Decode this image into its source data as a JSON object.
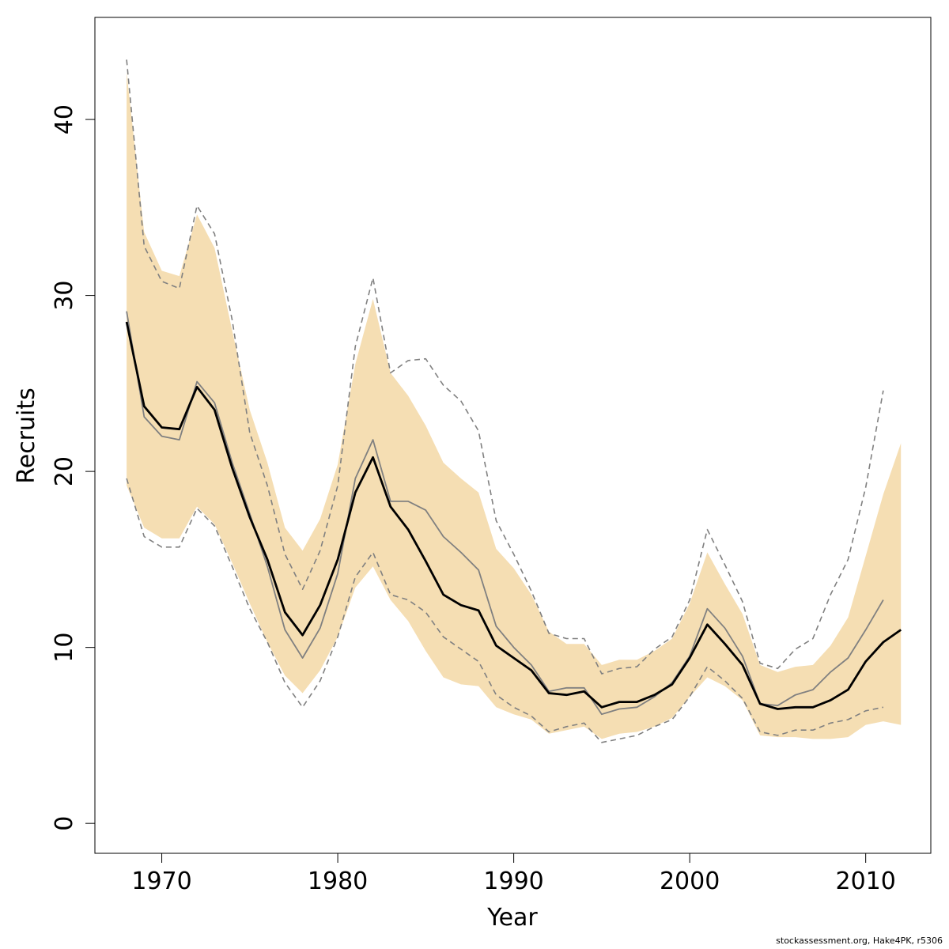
{
  "chart_data": {
    "type": "line",
    "xlabel": "Year",
    "ylabel": "Recruits",
    "xlim": [
      1966.2,
      2013.7
    ],
    "ylim": [
      -1.7,
      45.8
    ],
    "xticks": [
      1970,
      1980,
      1990,
      2000,
      2010
    ],
    "yticks": [
      0,
      10,
      20,
      30,
      40
    ],
    "grid": false,
    "legend": "none",
    "colors": {
      "band": "#f5deb3",
      "median": "#000000",
      "median_prev": "#808080",
      "interval_prev": "#808080",
      "frame": "#000000"
    },
    "series": [
      {
        "role": "band",
        "x": [
          1968,
          1969,
          1970,
          1971,
          1972,
          1973,
          1974,
          1975,
          1976,
          1977,
          1978,
          1979,
          1980,
          1981,
          1982,
          1983,
          1984,
          1985,
          1986,
          1987,
          1988,
          1989,
          1990,
          1991,
          1992,
          1993,
          1994,
          1995,
          1996,
          1997,
          1998,
          1999,
          2000,
          2001,
          2002,
          2003,
          2004,
          2005,
          2006,
          2007,
          2008,
          2009,
          2010,
          2011,
          2012
        ],
        "lower": [
          19.2,
          16.8,
          16.2,
          16.2,
          18.0,
          17.0,
          14.8,
          12.5,
          10.3,
          8.4,
          7.4,
          8.7,
          10.6,
          13.4,
          14.6,
          12.7,
          11.5,
          9.8,
          8.3,
          7.9,
          7.8,
          6.6,
          6.2,
          5.9,
          5.1,
          5.3,
          5.5,
          4.8,
          5.1,
          5.2,
          5.5,
          6.0,
          7.2,
          8.3,
          7.8,
          7.0,
          5.0,
          4.9,
          4.9,
          4.8,
          4.8,
          4.9,
          5.6,
          5.8,
          5.6
        ],
        "upper": [
          42.7,
          33.6,
          31.4,
          31.1,
          34.6,
          32.7,
          28.0,
          23.5,
          20.5,
          16.8,
          15.5,
          17.3,
          20.4,
          26.1,
          29.8,
          25.6,
          24.3,
          22.6,
          20.5,
          19.6,
          18.8,
          15.6,
          14.5,
          13.0,
          10.9,
          10.2,
          10.2,
          9.0,
          9.3,
          9.3,
          9.8,
          10.5,
          12.5,
          15.4,
          13.6,
          11.9,
          9.0,
          8.6,
          8.9,
          9.0,
          10.1,
          11.7,
          15.2,
          18.7,
          21.6
        ]
      },
      {
        "role": "median",
        "x": [
          1968,
          1969,
          1970,
          1971,
          1972,
          1973,
          1974,
          1975,
          1976,
          1977,
          1978,
          1979,
          1980,
          1981,
          1982,
          1983,
          1984,
          1985,
          1986,
          1987,
          1988,
          1989,
          1990,
          1991,
          1992,
          1993,
          1994,
          1995,
          1996,
          1997,
          1998,
          1999,
          2000,
          2001,
          2002,
          2003,
          2004,
          2005,
          2006,
          2007,
          2008,
          2009,
          2010,
          2011,
          2012
        ],
        "y": [
          28.5,
          23.7,
          22.5,
          22.4,
          24.8,
          23.5,
          20.2,
          17.4,
          15.0,
          12.0,
          10.7,
          12.4,
          15.0,
          18.8,
          20.8,
          18.0,
          16.7,
          14.9,
          13.0,
          12.4,
          12.1,
          10.1,
          9.4,
          8.7,
          7.4,
          7.3,
          7.5,
          6.6,
          6.9,
          6.9,
          7.3,
          7.9,
          9.4,
          11.3,
          10.2,
          9.0,
          6.8,
          6.5,
          6.6,
          6.6,
          7.0,
          7.6,
          9.2,
          10.3,
          11.0
        ]
      },
      {
        "role": "median_prev",
        "x": [
          1968,
          1969,
          1970,
          1971,
          1972,
          1973,
          1974,
          1975,
          1976,
          1977,
          1978,
          1979,
          1980,
          1981,
          1982,
          1983,
          1984,
          1985,
          1986,
          1987,
          1988,
          1989,
          1990,
          1991,
          1992,
          1993,
          1994,
          1995,
          1996,
          1997,
          1998,
          1999,
          2000,
          2001,
          2002,
          2003,
          2004,
          2005,
          2006,
          2007,
          2008,
          2009,
          2010,
          2011
        ],
        "y": [
          29.1,
          23.1,
          22.0,
          21.8,
          25.1,
          23.9,
          20.5,
          17.6,
          14.6,
          11.0,
          9.4,
          11.1,
          14.2,
          19.6,
          21.8,
          18.3,
          18.3,
          17.8,
          16.3,
          15.4,
          14.4,
          11.2,
          10.0,
          9.0,
          7.5,
          7.7,
          7.7,
          6.2,
          6.5,
          6.6,
          7.2,
          8.0,
          9.5,
          12.2,
          11.1,
          9.5,
          6.8,
          6.7,
          7.3,
          7.6,
          8.6,
          9.4,
          11.0,
          12.7
        ]
      },
      {
        "role": "upper_prev",
        "x": [
          1968,
          1969,
          1970,
          1971,
          1972,
          1973,
          1974,
          1975,
          1976,
          1977,
          1978,
          1979,
          1980,
          1981,
          1982,
          1983,
          1984,
          1985,
          1986,
          1987,
          1988,
          1989,
          1990,
          1991,
          1992,
          1993,
          1994,
          1995,
          1996,
          1997,
          1998,
          1999,
          2000,
          2001,
          2002,
          2003,
          2004,
          2005,
          2006,
          2007,
          2008,
          2009,
          2010,
          2011
        ],
        "y": [
          43.4,
          32.8,
          30.8,
          30.4,
          35.1,
          33.5,
          28.6,
          22.2,
          19.2,
          15.3,
          13.3,
          15.5,
          19.2,
          27.1,
          31.0,
          25.6,
          26.3,
          26.4,
          24.9,
          24.0,
          22.3,
          17.2,
          15.3,
          13.2,
          10.8,
          10.5,
          10.5,
          8.5,
          8.8,
          8.9,
          9.9,
          10.6,
          12.7,
          16.7,
          14.7,
          12.6,
          9.1,
          8.8,
          9.9,
          10.5,
          13.0,
          15.0,
          19.1,
          24.6
        ]
      },
      {
        "role": "lower_prev",
        "x": [
          1968,
          1969,
          1970,
          1971,
          1972,
          1973,
          1974,
          1975,
          1976,
          1977,
          1978,
          1979,
          1980,
          1981,
          1982,
          1983,
          1984,
          1985,
          1986,
          1987,
          1988,
          1989,
          1990,
          1991,
          1992,
          1993,
          1994,
          1995,
          1996,
          1997,
          1998,
          1999,
          2000,
          2001,
          2002,
          2003,
          2004,
          2005,
          2006,
          2007,
          2008,
          2009,
          2010,
          2011
        ],
        "y": [
          19.6,
          16.3,
          15.7,
          15.7,
          17.9,
          16.9,
          14.6,
          12.2,
          10.3,
          8.0,
          6.6,
          8.1,
          10.6,
          14.0,
          15.4,
          13.0,
          12.7,
          12.0,
          10.6,
          9.9,
          9.2,
          7.3,
          6.6,
          6.1,
          5.2,
          5.5,
          5.7,
          4.6,
          4.8,
          5.0,
          5.5,
          5.9,
          7.2,
          8.9,
          8.1,
          7.1,
          5.2,
          5.0,
          5.3,
          5.3,
          5.7,
          5.9,
          6.4,
          6.6
        ]
      }
    ]
  },
  "footer": {
    "credit": "stockassessment.org, Hake4PK, r5306"
  }
}
